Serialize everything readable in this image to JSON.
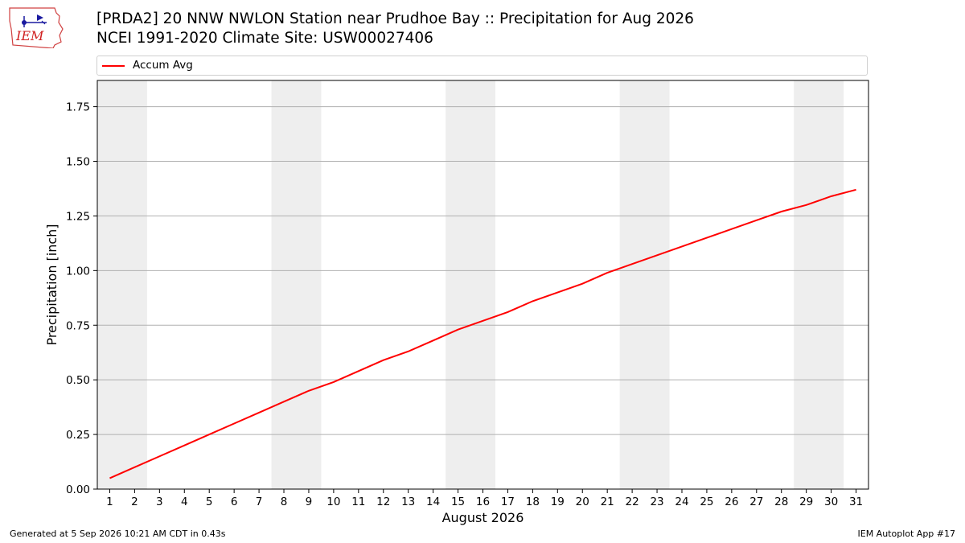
{
  "header": {
    "title_line1": "[PRDA2] 20 NNW NWLON Station near Prudhoe Bay :: Precipitation for Aug 2026",
    "title_line2": "NCEI 1991-2020 Climate Site: USW00027406"
  },
  "logo": {
    "text": "IEM",
    "icon": "iem-logo-icon"
  },
  "footer": {
    "left": "Generated at 5 Sep 2026 10:21 AM CDT in 0.43s",
    "right": "IEM Autoplot App #17"
  },
  "colors": {
    "line": "#ff0000",
    "weekend": "#eeeeee",
    "grid": "#b0b0b0"
  },
  "chart_data": {
    "type": "line",
    "xlabel": "August 2026",
    "ylabel": "Precipitation [inch]",
    "x": [
      1,
      2,
      3,
      4,
      5,
      6,
      7,
      8,
      9,
      10,
      11,
      12,
      13,
      14,
      15,
      16,
      17,
      18,
      19,
      20,
      21,
      22,
      23,
      24,
      25,
      26,
      27,
      28,
      29,
      30,
      31
    ],
    "xlim": [
      0.5,
      31.5
    ],
    "ylim": [
      0,
      1.87
    ],
    "yticks": [
      0.0,
      0.25,
      0.5,
      0.75,
      1.0,
      1.25,
      1.5,
      1.75
    ],
    "ytick_labels": [
      "0.00",
      "0.25",
      "0.50",
      "0.75",
      "1.00",
      "1.25",
      "1.50",
      "1.75"
    ],
    "xtick_labels": [
      "1",
      "2",
      "3",
      "4",
      "5",
      "6",
      "7",
      "8",
      "9",
      "10",
      "11",
      "12",
      "13",
      "14",
      "15",
      "16",
      "17",
      "18",
      "19",
      "20",
      "21",
      "22",
      "23",
      "24",
      "25",
      "26",
      "27",
      "28",
      "29",
      "30",
      "31"
    ],
    "grid": "horizontal",
    "shaded_days": [
      [
        1,
        2
      ],
      [
        8,
        9
      ],
      [
        15,
        16
      ],
      [
        22,
        23
      ],
      [
        29,
        30
      ]
    ],
    "legend": "top",
    "series": [
      {
        "name": "Accum Avg",
        "values": [
          0.05,
          0.1,
          0.15,
          0.2,
          0.25,
          0.3,
          0.35,
          0.4,
          0.45,
          0.49,
          0.54,
          0.59,
          0.63,
          0.68,
          0.73,
          0.77,
          0.81,
          0.86,
          0.9,
          0.94,
          0.99,
          1.03,
          1.07,
          1.11,
          1.15,
          1.19,
          1.23,
          1.27,
          1.3,
          1.34,
          1.37
        ]
      }
    ]
  }
}
